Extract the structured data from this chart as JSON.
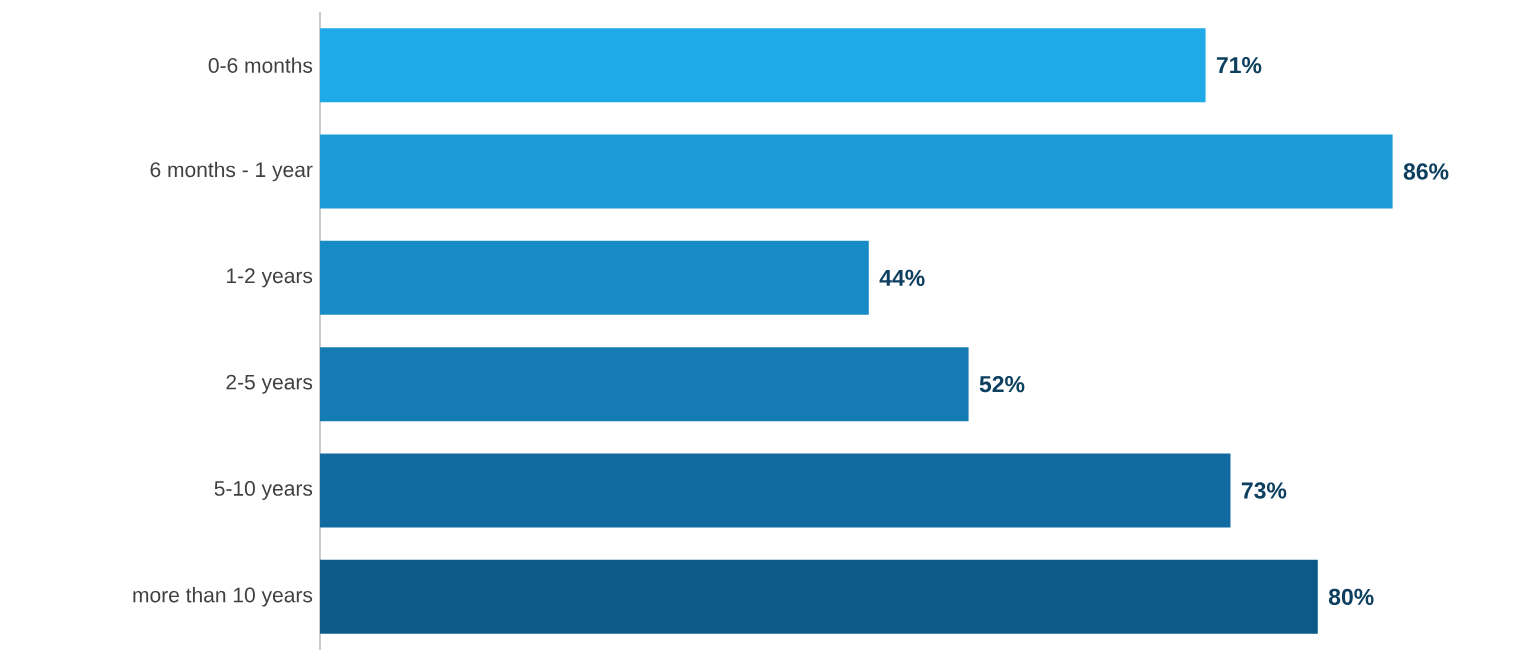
{
  "chart_data": {
    "type": "bar",
    "orientation": "horizontal",
    "categories": [
      "0-6 months",
      "6 months - 1 year",
      "1-2 years",
      "2-5 years",
      "5-10 years",
      "more than 10 years"
    ],
    "values": [
      71,
      86,
      44,
      52,
      73,
      80
    ],
    "value_labels": [
      "71%",
      "86%",
      "44%",
      "52%",
      "73%",
      "80%"
    ],
    "colors": [
      "#1fa9e9",
      "#1c9bd9",
      "#188bc7",
      "#157bb3",
      "#116ba0",
      "#0d5a87"
    ]
  }
}
